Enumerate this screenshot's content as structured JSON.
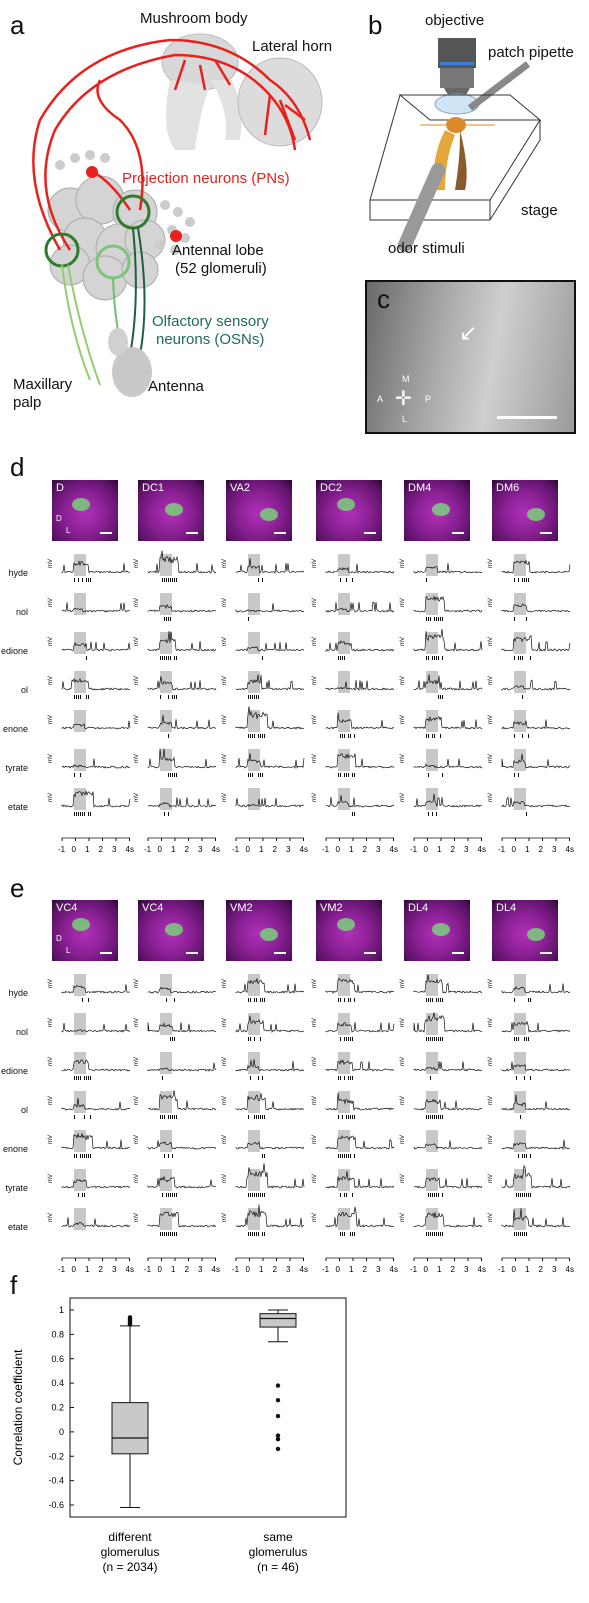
{
  "panels": {
    "a": "a",
    "b": "b",
    "c": "c",
    "d": "d",
    "e": "e",
    "f": "f"
  },
  "panel_a": {
    "mushroom_body": "Mushroom body",
    "lateral_horn": "Lateral horn",
    "pns": "Projection neurons (PNs)",
    "antennal_lobe_1": "Antennal lobe",
    "antennal_lobe_2": "(52 glomeruli)",
    "osn_1": "Olfactory sensory",
    "osn_2": "neurons (OSNs)",
    "maxillary_1": "Maxillary",
    "maxillary_2": "palp",
    "antenna": "Antenna"
  },
  "panel_b": {
    "objective": "objective",
    "pipette": "patch pipette",
    "stage": "stage",
    "odor": "odor stimuli"
  },
  "panel_c": {
    "m": "M",
    "a": "A",
    "p": "P",
    "l": "L"
  },
  "odors": [
    "hyde",
    "nol",
    "edione",
    "ol",
    "enone",
    "tyrate",
    "etate"
  ],
  "mv_label": "mV",
  "time_ticks": [
    "-1",
    "0",
    "1",
    "2",
    "3",
    "4s"
  ],
  "panel_d_glomeruli": [
    "D",
    "DC1",
    "VA2",
    "DC2",
    "DM4",
    "DM6"
  ],
  "panel_e_glomeruli": [
    "VC4",
    "VC4",
    "VM2",
    "VM2",
    "DL4",
    "DL4"
  ],
  "orientation": {
    "d": "D",
    "l": "L"
  },
  "chart_data": {
    "type": "box",
    "title": "",
    "ylabel": "Correlation coefficient",
    "xlabel": "",
    "ylim": [
      -0.6,
      1
    ],
    "yticks": [
      "1",
      "0.8",
      "0.6",
      "0.4",
      "0.2",
      "0",
      "-0.2",
      "-0.4",
      "-0.6"
    ],
    "categories": [
      "different glomerulus (n = 2034)",
      "same glomerulus (n = 46)"
    ],
    "category_lines": [
      [
        "different",
        "glomerulus",
        "(n = 2034)"
      ],
      [
        "same",
        "glomerulus",
        "(n = 46)"
      ]
    ],
    "boxes": [
      {
        "whisker_low": -0.62,
        "q1": -0.18,
        "median": -0.05,
        "q3": 0.24,
        "whisker_high": 0.87,
        "outliers": [
          0.88,
          0.89,
          0.9,
          0.91,
          0.92,
          0.93,
          0.94
        ]
      },
      {
        "whisker_low": 0.74,
        "q1": 0.86,
        "median": 0.93,
        "q3": 0.97,
        "whisker_high": 1.0,
        "outliers": [
          0.38,
          0.26,
          0.13,
          -0.03,
          -0.06,
          -0.14
        ]
      }
    ]
  }
}
